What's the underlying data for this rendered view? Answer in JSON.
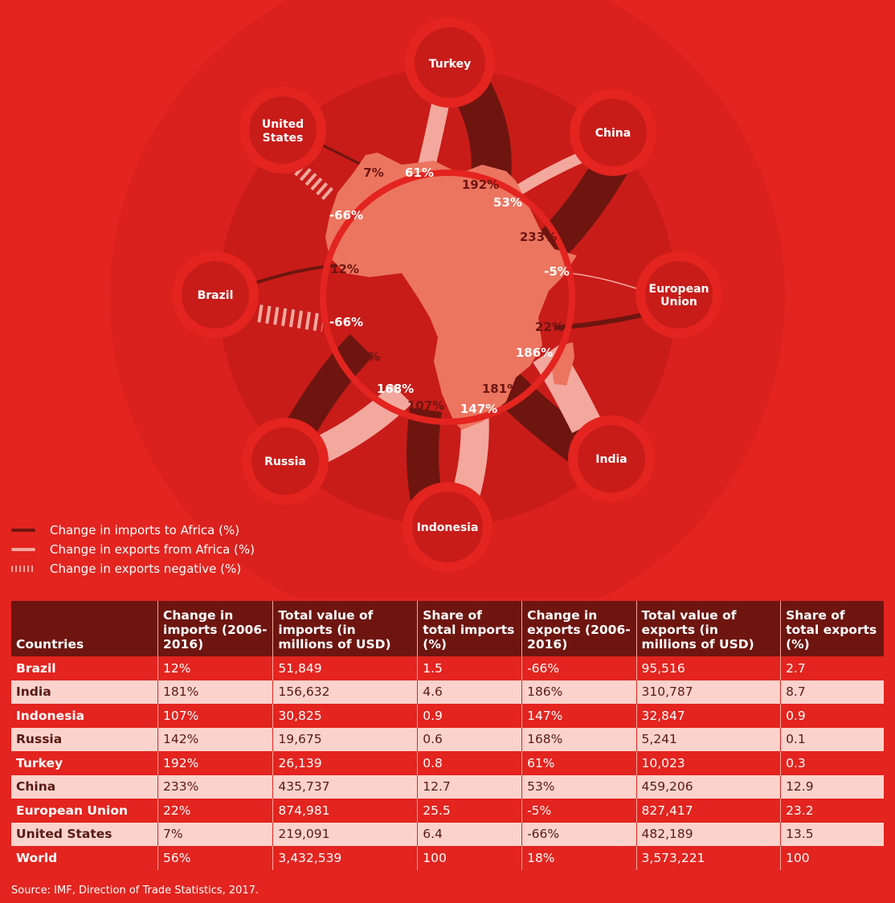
{
  "colors": {
    "background": "#e3241f",
    "imports": "#6e1510",
    "exports": "#f3a89e",
    "africa": "#ec7560",
    "ring": "#c81c19"
  },
  "nodes": {
    "turkey": "Turkey",
    "us_1": "United",
    "us_2": "States",
    "china": "China",
    "brazil": "Brazil",
    "eu_1": "European",
    "eu_2": "Union",
    "russia": "Russia",
    "india": "India",
    "indonesia": "Indonesia"
  },
  "labels": {
    "us_imp": "7%",
    "turkey_exp": "61%",
    "turkey_imp": "192%",
    "china_exp": "53%",
    "us_exp": "-66%",
    "china_imp": "233%",
    "eu_exp": "-5%",
    "brazil_imp": "12%",
    "brazil_exp": "-66%",
    "eu_imp": "22%",
    "india_exp": "186%",
    "russia_imp": "142%",
    "russia_exp": "168%",
    "india_imp": "181%",
    "indonesia_imp": "107%",
    "indonesia_exp": "147%"
  },
  "legend": [
    "Change in imports to Africa (%)",
    "Change in exports from Africa (%)",
    "Change in exports negative (%)"
  ],
  "table": {
    "headers": [
      "Countries",
      "Change in imports (2006-2016)",
      "Total value of imports (in millions of USD)",
      "Share of total imports (%)",
      "Change in exports (2006-2016)",
      "Total value of exports (in millions of USD)",
      "Share of total exports (%)"
    ],
    "rows": [
      [
        "Brazil",
        "12%",
        "51,849",
        "1.5",
        "-66%",
        "95,516",
        "2.7"
      ],
      [
        "India",
        "181%",
        "156,632",
        "4.6",
        "186%",
        "310,787",
        "8.7"
      ],
      [
        "Indonesia",
        "107%",
        "30,825",
        "0.9",
        "147%",
        "32,847",
        "0.9"
      ],
      [
        "Russia",
        "142%",
        "19,675",
        "0.6",
        "168%",
        "5,241",
        "0.1"
      ],
      [
        "Turkey",
        "192%",
        "26,139",
        "0.8",
        "61%",
        "10,023",
        "0.3"
      ],
      [
        "China",
        "233%",
        "435,737",
        "12.7",
        "53%",
        "459,206",
        "12.9"
      ],
      [
        "European Union",
        "22%",
        "874,981",
        "25.5",
        "-5%",
        "827,417",
        "23.2"
      ],
      [
        "United States",
        "7%",
        "219,091",
        "6.4",
        "-66%",
        "482,189",
        "13.5"
      ],
      [
        "World",
        "56%",
        "3,432,539",
        "100",
        "18%",
        "3,573,221",
        "100"
      ]
    ]
  },
  "source": "Source: IMF, Direction of Trade Statistics, 2017."
}
